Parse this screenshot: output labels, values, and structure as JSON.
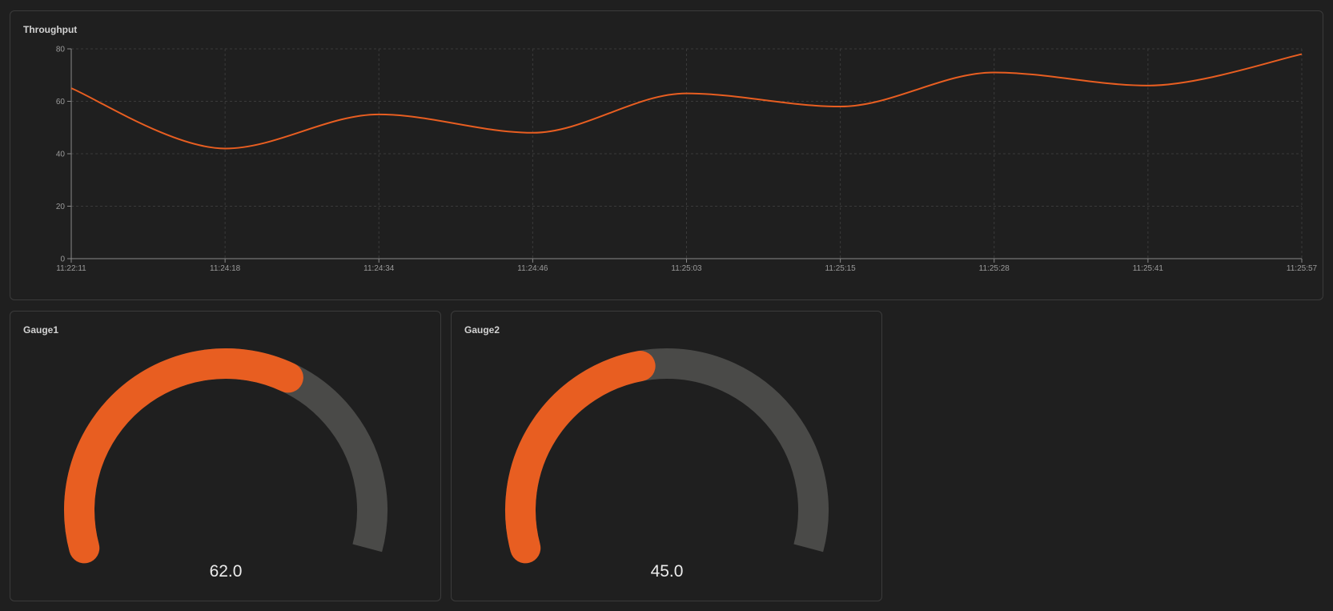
{
  "throughput": {
    "title": "Throughput"
  },
  "gauges": [
    {
      "title": "Gauge1",
      "value": 62.0,
      "display": "62.0",
      "min": 0,
      "max": 100
    },
    {
      "title": "Gauge2",
      "value": 45.0,
      "display": "45.0",
      "min": 0,
      "max": 100
    }
  ],
  "colors": {
    "background": "#1f1f1f",
    "panel_border": "#3b3b3b",
    "accent": "#e85e21",
    "gauge_track": "#4a4a48",
    "grid": "#3a3a3a",
    "axis": "#8a8a8a"
  },
  "chart_data": {
    "type": "line",
    "title": "Throughput",
    "xlabel": "",
    "ylabel": "",
    "ylim": [
      0,
      80
    ],
    "yticks": [
      0,
      20,
      40,
      60,
      80
    ],
    "grid": true,
    "x_tick_labels": [
      "11:22:11",
      "11:24:18",
      "11:24:34",
      "11:24:46",
      "11:25:03",
      "11:25:15",
      "11:25:28",
      "11:25:41",
      "11:25:57"
    ],
    "series": [
      {
        "values": [
          65,
          42,
          55,
          48,
          63,
          58,
          71,
          66,
          78
        ]
      }
    ]
  }
}
